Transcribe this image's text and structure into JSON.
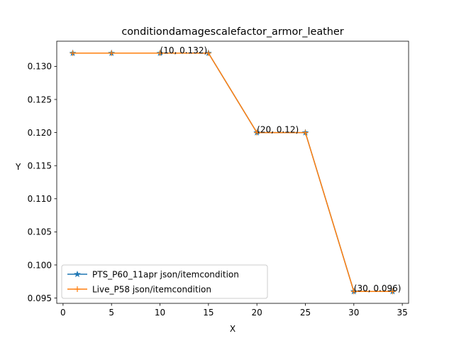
{
  "chart_data": {
    "type": "line",
    "title": "conditiondamagescalefactor_armor_leather",
    "xlabel": "X",
    "ylabel": "Y",
    "xlim": [
      -0.65,
      35.65
    ],
    "ylim": [
      0.0942,
      0.1338
    ],
    "xticks": [
      0,
      5,
      10,
      15,
      20,
      25,
      30,
      35
    ],
    "yticks": [
      0.095,
      0.1,
      0.105,
      0.11,
      0.115,
      0.12,
      0.125,
      0.13
    ],
    "ytick_labels": [
      "0.095",
      "0.100",
      "0.105",
      "0.110",
      "0.115",
      "0.120",
      "0.125",
      "0.130"
    ],
    "grid": false,
    "legend": "lower-left",
    "series": [
      {
        "name": "PTS_P60_11apr json/itemcondition",
        "color": "#1f77b4",
        "marker": "star",
        "x": [
          1,
          5,
          10,
          15,
          20,
          25,
          30,
          34
        ],
        "y": [
          0.132,
          0.132,
          0.132,
          0.132,
          0.12,
          0.12,
          0.096,
          0.096
        ]
      },
      {
        "name": "Live_P58 json/itemcondition",
        "color": "#ff7f0e",
        "marker": "plus",
        "x": [
          1,
          5,
          10,
          15,
          20,
          25,
          30,
          34
        ],
        "y": [
          0.132,
          0.132,
          0.132,
          0.132,
          0.12,
          0.12,
          0.096,
          0.096
        ]
      }
    ],
    "annotations": [
      {
        "x": 10,
        "y": 0.132,
        "text": "(10, 0.132)"
      },
      {
        "x": 20,
        "y": 0.12,
        "text": "(20, 0.12)"
      },
      {
        "x": 30,
        "y": 0.096,
        "text": "(30, 0.096)"
      }
    ]
  }
}
